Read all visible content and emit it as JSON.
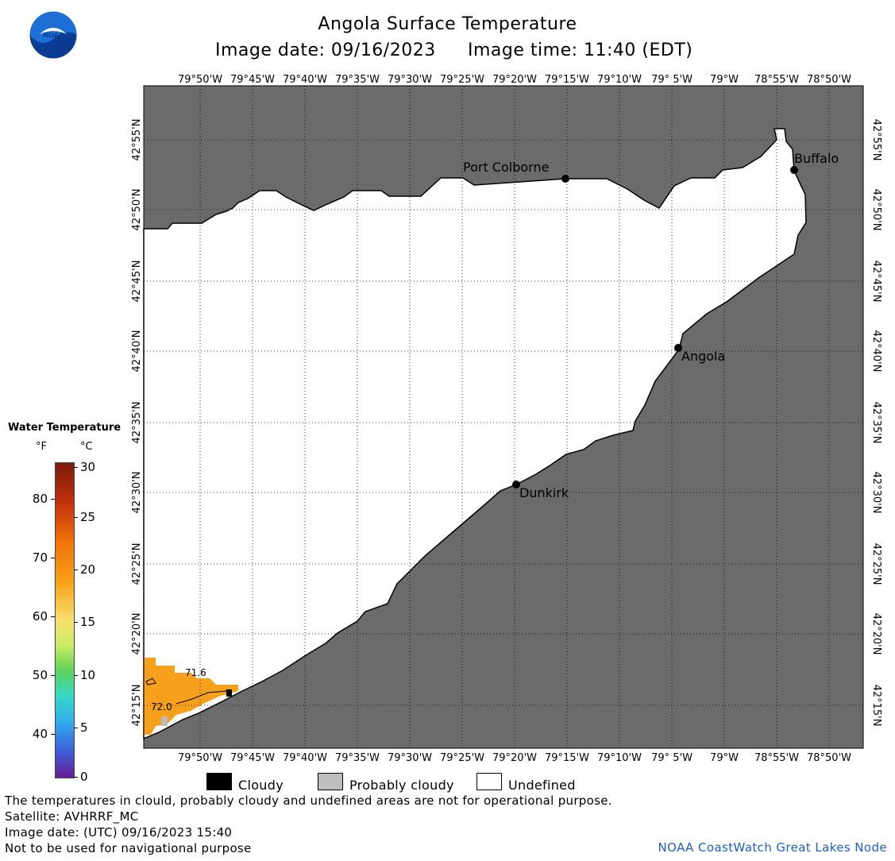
{
  "header": {
    "title": "Angola Surface Temperature",
    "subtitle_date": "Image date: 09/16/2023",
    "subtitle_time": "Image time: 11:40 (EDT)"
  },
  "map": {
    "lon_labels": [
      "79°50'W",
      "79°45'W",
      "79°40'W",
      "79°35'W",
      "79°30'W",
      "79°25'W",
      "79°20'W",
      "79°15'W",
      "79°10'W",
      "79° 5'W",
      "79°W",
      "78°55'W",
      "78°50'W"
    ],
    "lat_labels": [
      "42°55'N",
      "42°50'N",
      "42°45'N",
      "42°40'N",
      "42°35'N",
      "42°30'N",
      "42°25'N",
      "42°20'N",
      "42°15'N"
    ],
    "cities": [
      {
        "name": "Port Colborne"
      },
      {
        "name": "Buffalo"
      },
      {
        "name": "Angola"
      },
      {
        "name": "Dunkirk"
      }
    ],
    "temp_labels": [
      "71.6",
      "72.0"
    ],
    "land_color": "#6b6b6b",
    "water_temp_color": "#f6a01c"
  },
  "colorbar": {
    "title": "Water Temperature",
    "unit_f": "°F",
    "unit_c": "°C",
    "ticks_f": [
      "80",
      "70",
      "60",
      "50",
      "40"
    ],
    "ticks_c": [
      "30",
      "25",
      "20",
      "15",
      "10",
      "5",
      "0"
    ]
  },
  "legend": {
    "items": [
      {
        "label": "Cloudy",
        "color": "#000000"
      },
      {
        "label": "Probably cloudy",
        "color": "#bdbdbd"
      },
      {
        "label": "Undefined",
        "color": "#ffffff"
      }
    ]
  },
  "footer": {
    "line1": "The temperatures in clould, probably cloudy and undefined areas are not for operational purpose.",
    "line2": "Satellite: AVHRRF_MC",
    "line3": "Image date: (UTC) 09/16/2023  15:40",
    "line4": "Not to be used for navigational purpose",
    "credit": "NOAA CoastWatch Great Lakes Node"
  },
  "logo": {
    "text": "NOAA"
  }
}
